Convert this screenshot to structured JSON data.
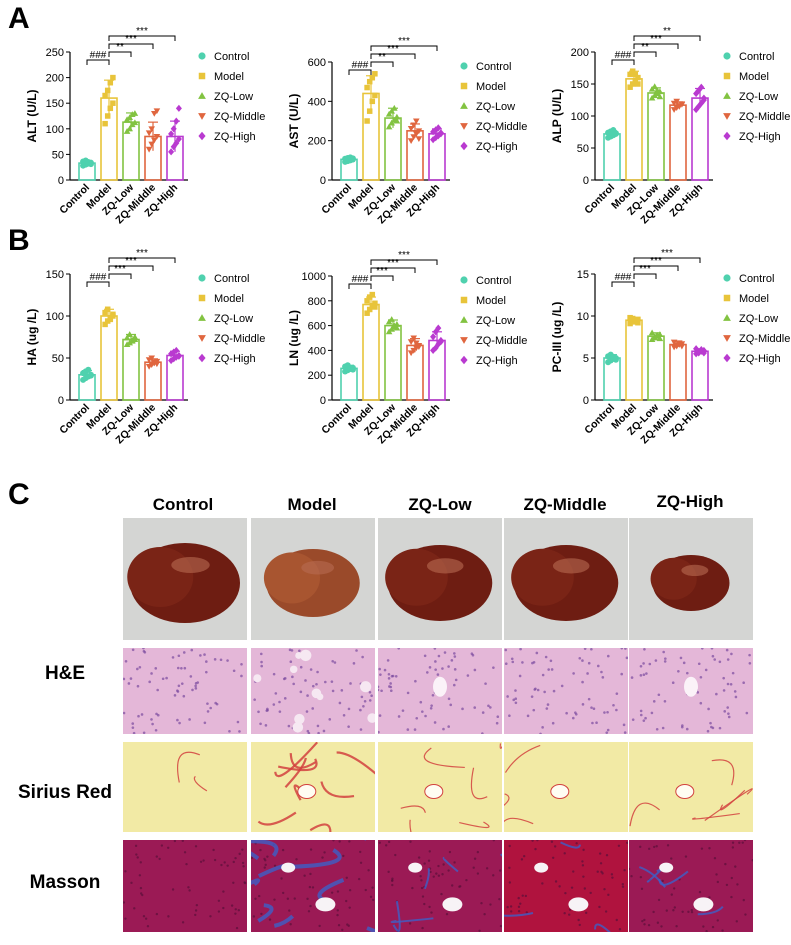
{
  "panels": {
    "a": "A",
    "b": "B",
    "c": "C"
  },
  "legend": [
    "Control",
    "Model",
    "ZQ-Low",
    "ZQ-Middle",
    "ZQ-High"
  ],
  "colors": {
    "control": "#4fd1ae",
    "model": "#e8c43a",
    "low": "#82c341",
    "middle": "#e0663f",
    "high": "#b93ad0"
  },
  "chart_data": [
    {
      "type": "bar",
      "ylabel": "ALT (U/L)",
      "ylim": [
        0,
        250
      ],
      "yticks": [
        0,
        50,
        100,
        150,
        200,
        250
      ],
      "categories": [
        "Control",
        "Model",
        "ZQ-Low",
        "ZQ-Middle",
        "ZQ-High"
      ],
      "values": [
        33,
        160,
        113,
        85,
        85
      ],
      "errors": [
        5,
        35,
        18,
        28,
        30
      ],
      "points": [
        [
          28,
          30,
          32,
          34,
          36,
          38,
          35,
          31
        ],
        [
          110,
          125,
          140,
          150,
          165,
          175,
          190,
          200
        ],
        [
          95,
          100,
          108,
          112,
          118,
          122,
          128,
          130
        ],
        [
          60,
          70,
          78,
          85,
          92,
          100,
          130,
          135
        ],
        [
          55,
          65,
          72,
          80,
          90,
          100,
          115,
          140
        ]
      ],
      "annotations": [
        {
          "label": "###",
          "from": 0,
          "to": 1,
          "level": 1
        },
        {
          "label": "**",
          "from": 1,
          "to": 2,
          "level": 2
        },
        {
          "label": "***",
          "from": 1,
          "to": 3,
          "level": 3
        },
        {
          "label": "***",
          "from": 1,
          "to": 4,
          "level": 4
        }
      ]
    },
    {
      "type": "bar",
      "ylabel": "AST (U/L)",
      "ylim": [
        0,
        600
      ],
      "yticks": [
        0,
        200,
        400,
        600
      ],
      "categories": [
        "Control",
        "Model",
        "ZQ-Low",
        "ZQ-Middle",
        "ZQ-High"
      ],
      "values": [
        105,
        440,
        315,
        250,
        235
      ],
      "errors": [
        10,
        90,
        50,
        35,
        25
      ],
      "points": [
        [
          92,
          96,
          100,
          104,
          108,
          112,
          115,
          110
        ],
        [
          300,
          350,
          400,
          430,
          470,
          500,
          520,
          540
        ],
        [
          270,
          290,
          305,
          320,
          335,
          350,
          365,
          300
        ],
        [
          200,
          220,
          235,
          250,
          262,
          280,
          300,
          210
        ],
        [
          205,
          215,
          225,
          235,
          245,
          255,
          265,
          240
        ]
      ],
      "annotations": [
        {
          "label": "###",
          "from": 0,
          "to": 1,
          "level": 1
        },
        {
          "label": "**",
          "from": 1,
          "to": 2,
          "level": 2
        },
        {
          "label": "***",
          "from": 1,
          "to": 3,
          "level": 3
        },
        {
          "label": "***",
          "from": 1,
          "to": 4,
          "level": 4
        }
      ]
    },
    {
      "type": "bar",
      "ylabel": "ALP  (U/L)",
      "ylim": [
        0,
        200
      ],
      "yticks": [
        0,
        50,
        100,
        150,
        200
      ],
      "categories": [
        "Control",
        "Model",
        "ZQ-Low",
        "ZQ-Middle",
        "ZQ-High"
      ],
      "values": [
        72,
        158,
        136,
        117,
        128
      ],
      "errors": [
        5,
        12,
        8,
        5,
        15
      ],
      "points": [
        [
          66,
          68,
          70,
          72,
          74,
          76,
          78,
          73
        ],
        [
          145,
          150,
          155,
          160,
          165,
          170,
          165,
          150
        ],
        [
          128,
          132,
          135,
          138,
          142,
          146,
          140,
          130
        ],
        [
          110,
          113,
          116,
          118,
          120,
          123,
          115,
          119
        ],
        [
          110,
          115,
          120,
          128,
          135,
          140,
          145,
          125
        ]
      ],
      "annotations": [
        {
          "label": "###",
          "from": 0,
          "to": 1,
          "level": 1
        },
        {
          "label": "**",
          "from": 1,
          "to": 2,
          "level": 2
        },
        {
          "label": "***",
          "from": 1,
          "to": 3,
          "level": 3
        },
        {
          "label": "**",
          "from": 1,
          "to": 4,
          "level": 4
        }
      ]
    },
    {
      "type": "bar",
      "ylabel": "HA   (ug /L)",
      "ylim": [
        0,
        150
      ],
      "yticks": [
        0,
        50,
        100,
        150
      ],
      "categories": [
        "Control",
        "Model",
        "ZQ-Low",
        "ZQ-Middle",
        "ZQ-High"
      ],
      "values": [
        30,
        100,
        72,
        45,
        53
      ],
      "errors": [
        5,
        8,
        6,
        4,
        5
      ],
      "points": [
        [
          24,
          26,
          28,
          30,
          32,
          34,
          36,
          29
        ],
        [
          90,
          94,
          98,
          100,
          104,
          108,
          96,
          102
        ],
        [
          66,
          68,
          70,
          72,
          74,
          78,
          71,
          75
        ],
        [
          40,
          42,
          44,
          46,
          48,
          50,
          45,
          43
        ],
        [
          47,
          49,
          51,
          53,
          55,
          57,
          59,
          52
        ]
      ],
      "annotations": [
        {
          "label": "###",
          "from": 0,
          "to": 1,
          "level": 1
        },
        {
          "label": "***",
          "from": 1,
          "to": 2,
          "level": 2
        },
        {
          "label": "***",
          "from": 1,
          "to": 3,
          "level": 3
        },
        {
          "label": "***",
          "from": 1,
          "to": 4,
          "level": 4
        }
      ]
    },
    {
      "type": "bar",
      "ylabel": "LN    (ug /L)",
      "ylim": [
        0,
        1000
      ],
      "yticks": [
        0,
        200,
        400,
        600,
        800,
        1000
      ],
      "categories": [
        "Control",
        "Model",
        "ZQ-Low",
        "ZQ-Middle",
        "ZQ-High"
      ],
      "values": [
        255,
        770,
        600,
        440,
        480
      ],
      "errors": [
        25,
        60,
        45,
        55,
        70
      ],
      "points": [
        [
          230,
          240,
          250,
          260,
          270,
          280,
          255,
          245
        ],
        [
          700,
          730,
          760,
          780,
          800,
          830,
          850,
          750
        ],
        [
          550,
          570,
          590,
          610,
          630,
          650,
          600,
          580
        ],
        [
          380,
          400,
          420,
          440,
          470,
          500,
          460,
          430
        ],
        [
          400,
          420,
          450,
          480,
          510,
          550,
          580,
          470
        ]
      ],
      "annotations": [
        {
          "label": "###",
          "from": 0,
          "to": 1,
          "level": 1
        },
        {
          "label": "***",
          "from": 1,
          "to": 2,
          "level": 2
        },
        {
          "label": "***",
          "from": 1,
          "to": 3,
          "level": 3
        },
        {
          "label": "***",
          "from": 1,
          "to": 4,
          "level": 4
        }
      ]
    },
    {
      "type": "bar",
      "ylabel": "PC-III   (ug /L)",
      "ylim": [
        0,
        15
      ],
      "yticks": [
        0,
        5,
        10,
        15
      ],
      "categories": [
        "Control",
        "Model",
        "ZQ-Low",
        "ZQ-Middle",
        "ZQ-High"
      ],
      "values": [
        5.0,
        9.5,
        7.6,
        6.6,
        5.8
      ],
      "errors": [
        0.4,
        0.3,
        0.4,
        0.3,
        0.3
      ],
      "points": [
        [
          4.5,
          4.7,
          4.9,
          5.0,
          5.2,
          5.4,
          5.1,
          4.8
        ],
        [
          9.1,
          9.3,
          9.5,
          9.6,
          9.8,
          9.7,
          9.4,
          9.2
        ],
        [
          7.2,
          7.4,
          7.6,
          7.8,
          8.0,
          7.5,
          7.7,
          7.3
        ],
        [
          6.3,
          6.4,
          6.6,
          6.7,
          6.9,
          6.5,
          6.8,
          6.4
        ],
        [
          5.5,
          5.6,
          5.8,
          5.9,
          6.1,
          5.7,
          6.0,
          5.6
        ]
      ],
      "annotations": [
        {
          "label": "###",
          "from": 0,
          "to": 1,
          "level": 1
        },
        {
          "label": "***",
          "from": 1,
          "to": 2,
          "level": 2
        },
        {
          "label": "***",
          "from": 1,
          "to": 3,
          "level": 3
        },
        {
          "label": "***",
          "from": 1,
          "to": 4,
          "level": 4
        }
      ]
    }
  ],
  "histology": {
    "columns": [
      "Control",
      "Model",
      "ZQ-Low",
      "ZQ-Middle",
      "ZQ-High"
    ],
    "rows": [
      "H&E",
      "Sirius Red",
      "Masson"
    ]
  }
}
